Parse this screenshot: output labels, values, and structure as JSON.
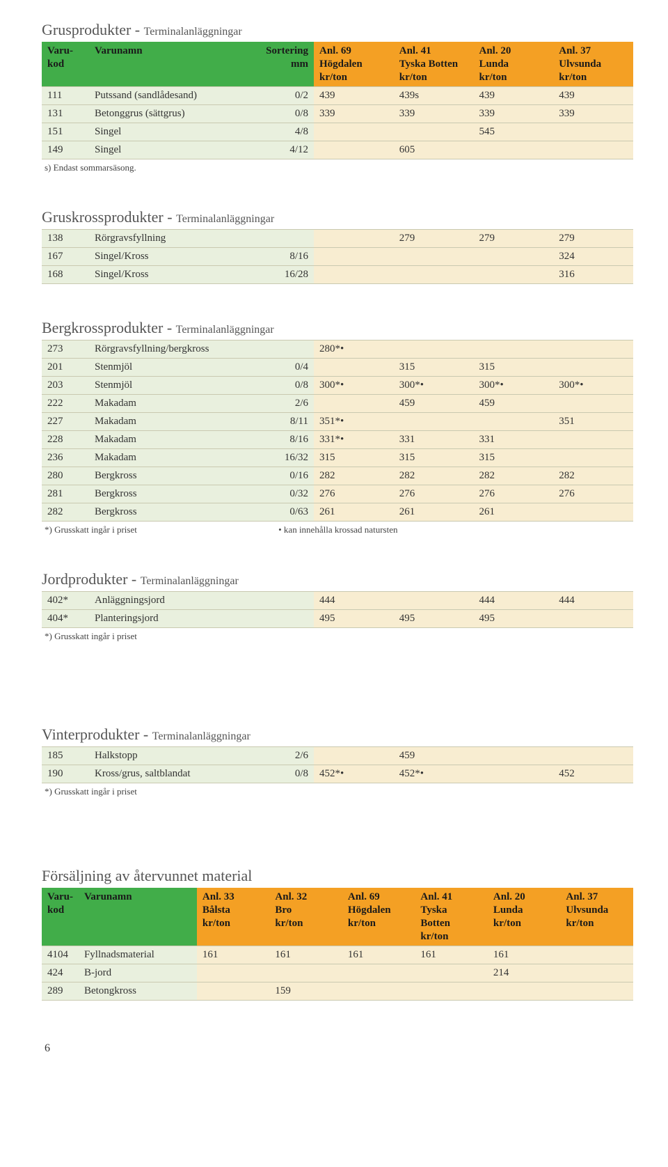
{
  "palette": {
    "header_green": "#41ad49",
    "header_orange": "#f4a024",
    "cell_green": "#e9f0de",
    "cell_cream": "#f8edd1",
    "rule": "#c9c9b0",
    "title": "#555555",
    "text": "#333333"
  },
  "fonts": {
    "title_pt": 22,
    "subtitle_pt": 16,
    "body_pt": 15,
    "note_pt": 13
  },
  "col_headers_main": {
    "code": "Varu-\nkod",
    "name": "Varunamn",
    "sort": "Sortering\nmm",
    "c1": "Anl. 69\nHögdalen\nkr/ton",
    "c2": "Anl. 41\nTyska Botten\nkr/ton",
    "c3": "Anl. 20\nLunda\nkr/ton",
    "c4": "Anl. 37\nUlvsunda\nkr/ton"
  },
  "grus": {
    "title": "Grusprodukter - ",
    "sub": "Terminalanläggningar",
    "rows": [
      {
        "code": "111",
        "name": "Putssand (sandlådesand)",
        "sort": "0/2",
        "c1": "439",
        "c2": "439s",
        "c3": "439",
        "c4": "439"
      },
      {
        "code": "131",
        "name": "Betonggrus (sättgrus)",
        "sort": "0/8",
        "c1": "339",
        "c2": "339",
        "c3": "339",
        "c4": "339"
      },
      {
        "code": "151",
        "name": "Singel",
        "sort": "4/8",
        "c1": "",
        "c2": "",
        "c3": "545",
        "c4": ""
      },
      {
        "code": "149",
        "name": "Singel",
        "sort": "4/12",
        "c1": "",
        "c2": "605",
        "c3": "",
        "c4": ""
      }
    ],
    "note": "s) Endast sommarsäsong."
  },
  "gruskross": {
    "title": "Gruskrossprodukter - ",
    "sub": "Terminalanläggningar",
    "rows": [
      {
        "code": "138",
        "name": "Rörgravsfyllning",
        "sort": "",
        "c1": "",
        "c2": "279",
        "c3": "279",
        "c4": "279"
      },
      {
        "code": "167",
        "name": "Singel/Kross",
        "sort": "8/16",
        "c1": "",
        "c2": "",
        "c3": "",
        "c4": "324"
      },
      {
        "code": "168",
        "name": "Singel/Kross",
        "sort": "16/28",
        "c1": "",
        "c2": "",
        "c3": "",
        "c4": "316"
      }
    ]
  },
  "bergkross": {
    "title": "Bergkrossprodukter - ",
    "sub": "Terminalanläggningar",
    "rows": [
      {
        "code": "273",
        "name": "Rörgravsfyllning/bergkross",
        "sort": "",
        "c1": "280*•",
        "c2": "",
        "c3": "",
        "c4": ""
      },
      {
        "code": "201",
        "name": "Stenmjöl",
        "sort": "0/4",
        "c1": "",
        "c2": "315",
        "c3": "315",
        "c4": ""
      },
      {
        "code": "203",
        "name": "Stenmjöl",
        "sort": "0/8",
        "c1": "300*•",
        "c2": "300*•",
        "c3": "300*•",
        "c4": "300*•"
      },
      {
        "code": "222",
        "name": "Makadam",
        "sort": "2/6",
        "c1": "",
        "c2": "459",
        "c3": "459",
        "c4": ""
      },
      {
        "code": "227",
        "name": "Makadam",
        "sort": "8/11",
        "c1": "351*•",
        "c2": "",
        "c3": "",
        "c4": "351"
      },
      {
        "code": "228",
        "name": "Makadam",
        "sort": "8/16",
        "c1": "331*•",
        "c2": "331",
        "c3": "331",
        "c4": ""
      },
      {
        "code": "236",
        "name": "Makadam",
        "sort": "16/32",
        "c1": "315",
        "c2": "315",
        "c3": "315",
        "c4": ""
      },
      {
        "code": "280",
        "name": "Bergkross",
        "sort": "0/16",
        "c1": "282",
        "c2": "282",
        "c3": "282",
        "c4": "282"
      },
      {
        "code": "281",
        "name": "Bergkross",
        "sort": "0/32",
        "c1": "276",
        "c2": "276",
        "c3": "276",
        "c4": "276"
      },
      {
        "code": "282",
        "name": "Bergkross",
        "sort": "0/63",
        "c1": "261",
        "c2": "261",
        "c3": "261",
        "c4": ""
      }
    ],
    "note_left": "*) Grusskatt ingår i priset",
    "note_right": "• kan innehålla krossad natursten"
  },
  "jord": {
    "title": "Jordprodukter - ",
    "sub": "Terminalanläggningar",
    "rows": [
      {
        "code": "402*",
        "name": "Anläggningsjord",
        "sort": "",
        "c1": "444",
        "c2": "",
        "c3": "444",
        "c4": "444"
      },
      {
        "code": "404*",
        "name": "Planteringsjord",
        "sort": "",
        "c1": "495",
        "c2": "495",
        "c3": "495",
        "c4": ""
      }
    ],
    "note": "*) Grusskatt ingår i priset"
  },
  "vinter": {
    "title": "Vinterprodukter - ",
    "sub": "Terminalanläggningar",
    "rows": [
      {
        "code": "185",
        "name": "Halkstopp",
        "sort": "2/6",
        "c1": "",
        "c2": "459",
        "c3": "",
        "c4": ""
      },
      {
        "code": "190",
        "name": "Kross/grus, saltblandat",
        "sort": "0/8",
        "c1": "452*•",
        "c2": "452*•",
        "c3": "",
        "c4": "452"
      }
    ],
    "note": "*) Grusskatt ingår i priset"
  },
  "atervunnet": {
    "title": "Försäljning av återvunnet material",
    "headers": {
      "code": "Varu-\nkod",
      "name": "Varunamn",
      "c1": "Anl. 33\nBålsta\nkr/ton",
      "c2": "Anl. 32\nBro\nkr/ton",
      "c3": "Anl. 69\nHögdalen\nkr/ton",
      "c4": "Anl. 41\nTyska\nBotten\nkr/ton",
      "c5": "Anl. 20\nLunda\nkr/ton",
      "c6": "Anl. 37\nUlvsunda\nkr/ton"
    },
    "rows": [
      {
        "code": "4104",
        "name": "Fyllnadsmaterial",
        "c1": "161",
        "c2": "161",
        "c3": "161",
        "c4": "161",
        "c5": "161",
        "c6": ""
      },
      {
        "code": "424",
        "name": "B-jord",
        "c1": "",
        "c2": "",
        "c3": "",
        "c4": "",
        "c5": "214",
        "c6": ""
      },
      {
        "code": "289",
        "name": "Betongkross",
        "c1": "",
        "c2": "159",
        "c3": "",
        "c4": "",
        "c5": "",
        "c6": ""
      }
    ]
  },
  "page_number": "6"
}
